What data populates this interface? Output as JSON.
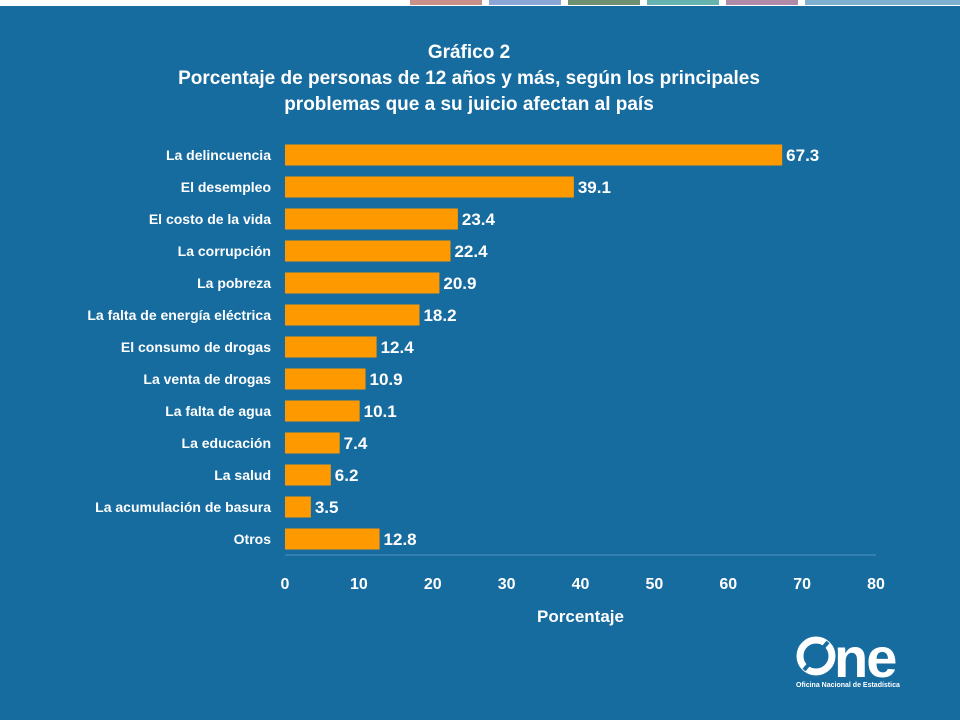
{
  "chart_data": {
    "type": "bar",
    "orientation": "horizontal",
    "title": "Gráfico 2",
    "subtitle_lines": [
      "Porcentaje de personas de 12 años y más, según los principales",
      "problemas que a su juicio afectan al país"
    ],
    "categories": [
      "La delincuencia",
      "El desempleo",
      "El costo de la vida",
      "La corrupción",
      "La pobreza",
      "La falta de energía eléctrica",
      "El consumo de drogas",
      "La venta de drogas",
      "La falta de agua",
      "La educación",
      "La salud",
      "La acumulación de basura",
      "Otros"
    ],
    "values": [
      67.3,
      39.1,
      23.4,
      22.4,
      20.9,
      18.2,
      12.4,
      10.9,
      10.1,
      7.4,
      6.2,
      3.5,
      12.8
    ],
    "data_labels": [
      "67.3",
      "39.1",
      "23.4",
      "22.4",
      "20.9",
      "18.2",
      "12.4",
      "10.9",
      "10.1",
      "7.4",
      "6.2",
      "3.5",
      "12.8"
    ],
    "xlabel": "Porcentaje",
    "ylabel": "",
    "xlim": [
      0,
      80
    ],
    "xticks": [
      "0",
      "10",
      "20",
      "30",
      "40",
      "50",
      "60",
      "70",
      "80"
    ],
    "bar_color": "#ff9900",
    "grid": false,
    "legend": "none"
  },
  "logo": {
    "word": "one",
    "subtitle": "Oficina Nacional de Estadística"
  },
  "colors": {
    "background": "#166b9f",
    "top_strip_segments": [
      "#c7918a",
      "#8aa6d4",
      "#6f9070",
      "#66b3b0",
      "#b08aa6",
      "#7fb0cf"
    ]
  }
}
